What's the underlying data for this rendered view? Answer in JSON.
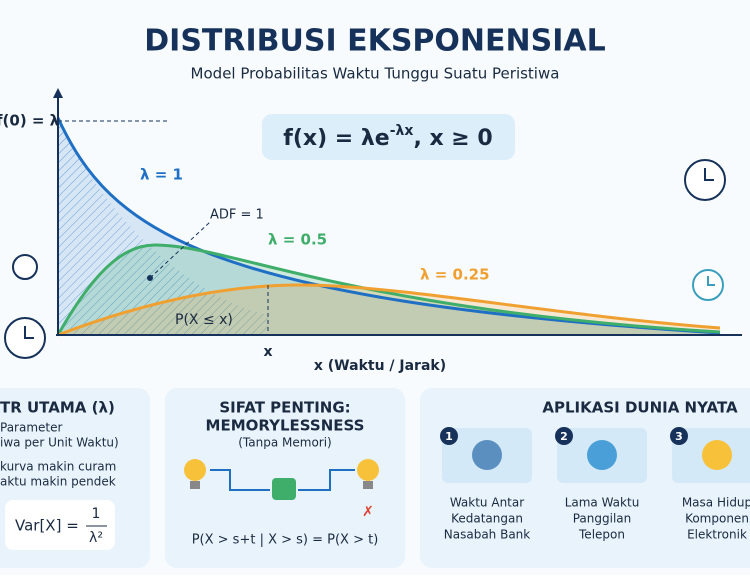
{
  "header": {
    "title": "DISTRIBUSI EKSPONENSIAL",
    "subtitle": "Model Probabilitas Waktu Tunggu Suatu Peristiwa"
  },
  "graph": {
    "f0_label": "f(0) = λ",
    "formula": {
      "main": "f(x) = λe",
      "exponent": "-λx",
      "condition": ", x ≥ 0"
    },
    "curves": [
      {
        "label": "λ = 1",
        "color": "#1f6fc4"
      },
      {
        "label": "λ = 0.5",
        "color": "#3fae6a"
      },
      {
        "label": "λ = 0.25",
        "color": "#f0a030"
      }
    ],
    "adf_label": "ADF = 1",
    "area_label": "P(X ≤ x)",
    "x_marker": "x",
    "x_axis_label": "x (Waktu / Jarak)"
  },
  "panels": [
    {
      "title": "TR UTAMA (λ)",
      "lines": [
        "Parameter",
        "iwa per Unit Waktu)",
        "kurva makin curam",
        "aktu makin pendek"
      ],
      "formula": {
        "left": "Var[X] =",
        "numerator": "1",
        "denominator": "λ²"
      }
    },
    {
      "title": [
        "SIFAT PENTING:",
        "MEMORYLESSNESS"
      ],
      "subtitle": "(Tanpa Memori)",
      "formula": "P(X > s+t | X > s) = P(X > t)"
    },
    {
      "title": "APLIKASI DUNIA NYATA",
      "items": [
        {
          "number": "1",
          "lines": [
            "Waktu Antar",
            "Kedatangan",
            "Nasabah Bank"
          ]
        },
        {
          "number": "2",
          "lines": [
            "Lama Waktu",
            "Panggilan",
            "Telepon"
          ]
        },
        {
          "number": "3",
          "lines": [
            "Masa Hidup",
            "Komponen",
            "Elektronik"
          ]
        }
      ]
    }
  ]
}
